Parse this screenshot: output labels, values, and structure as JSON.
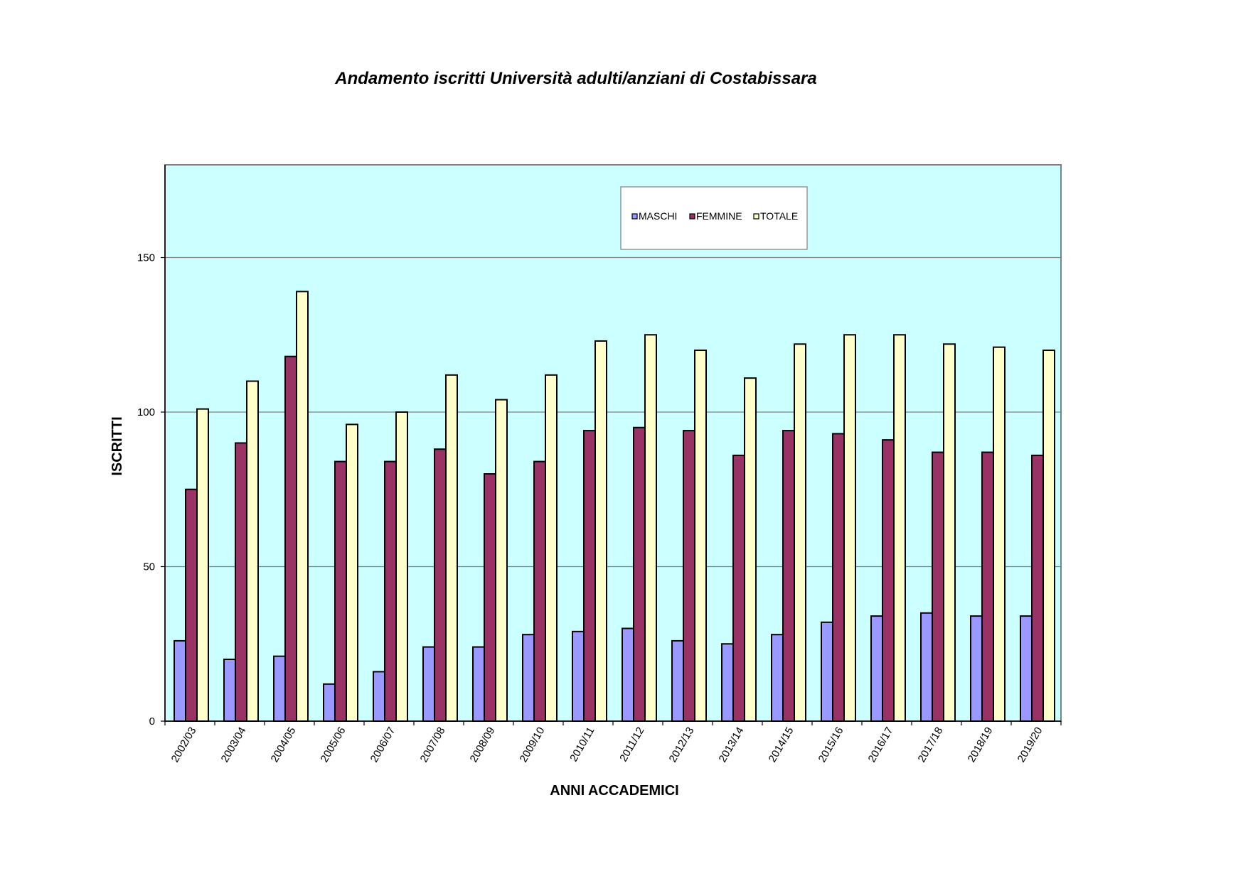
{
  "chart_data": {
    "type": "bar",
    "title": "Andamento iscritti Università adulti/anziani di Costabissara",
    "xlabel": "ANNI ACCADEMICI",
    "ylabel": "ISCRITTI",
    "ylim": [
      0,
      180
    ],
    "yticks": [
      0,
      50,
      100,
      150
    ],
    "grid": true,
    "legend_position": "top-right",
    "plot_background": "#ccffff",
    "categories": [
      "2002/03",
      "2003/04",
      "2004/05",
      "2005/06",
      "2006/07",
      "2007/08",
      "2008/09",
      "2009/10",
      "2010/11",
      "2011/12",
      "2012/13",
      "2013/14",
      "2014/15",
      "2015/16",
      "2016/17",
      "2017/18",
      "2018/19",
      "2019/20"
    ],
    "series": [
      {
        "name": "MASCHI",
        "color": "#9999ff",
        "values": [
          26,
          20,
          21,
          12,
          16,
          24,
          24,
          28,
          29,
          30,
          26,
          25,
          28,
          32,
          34,
          35,
          34,
          34
        ]
      },
      {
        "name": "FEMMINE",
        "color": "#993366",
        "values": [
          75,
          90,
          118,
          84,
          84,
          88,
          80,
          84,
          94,
          95,
          94,
          86,
          94,
          93,
          91,
          87,
          87,
          86
        ]
      },
      {
        "name": "TOTALE",
        "color": "#ffffcc",
        "values": [
          101,
          110,
          139,
          96,
          100,
          112,
          104,
          112,
          123,
          125,
          120,
          111,
          122,
          125,
          125,
          122,
          121,
          120
        ]
      }
    ]
  }
}
